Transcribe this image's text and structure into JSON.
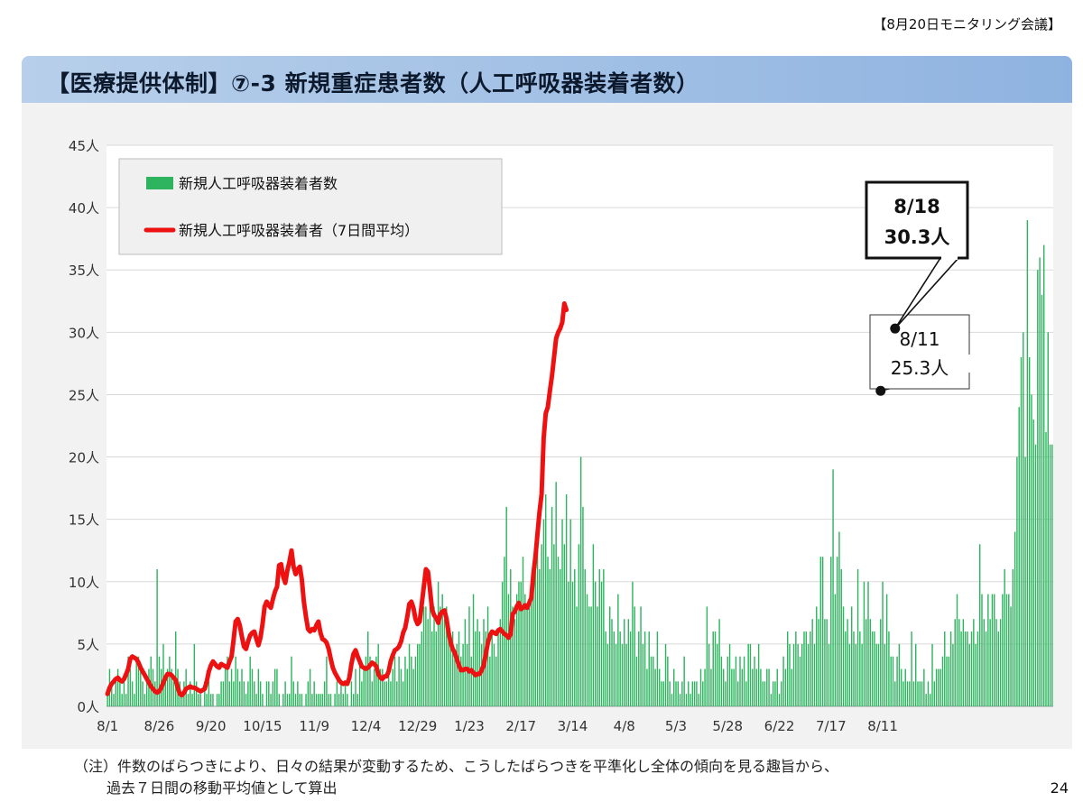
{
  "header": {
    "meeting_tag": "【8月20日モニタリング会議】"
  },
  "title": "【医療提供体制】⑦-3 新規重症患者数（人工呼吸器装着者数）",
  "note": {
    "line1": "（注）件数のばらつきにより、日々の結果が変動するため、こうしたばらつきを平準化し全体の傾向を見る趣旨から、",
    "line2": "過去７日間の移動平均値として算出"
  },
  "page_number": "24",
  "colors": {
    "bar": "#2eb35f",
    "line": "#ee1111",
    "title_bar": "#9dbde5",
    "plot_bg": "#ffffff",
    "panel_bg": "#f2f2f2"
  },
  "chart_data": {
    "type": "bar",
    "ylim": [
      0,
      45
    ],
    "y_ticks": [
      "0人",
      "5人",
      "10人",
      "15人",
      "20人",
      "25人",
      "30人",
      "35人",
      "40人",
      "45人"
    ],
    "x_tick_labels": [
      "8/1",
      "8/26",
      "9/20",
      "10/15",
      "11/9",
      "12/4",
      "12/29",
      "1/23",
      "2/17",
      "3/14",
      "4/8",
      "5/3",
      "5/28",
      "6/22",
      "7/17",
      "8/11"
    ],
    "x_tick_spacing_days": 25,
    "legend": {
      "bars": "新規人工呼吸器装着者数",
      "line": "新規人工呼吸器装着者（7日間平均）",
      "position": "top-left"
    },
    "grid": true,
    "series": [
      {
        "name": "新規人工呼吸器装着者数",
        "type": "bar",
        "values": [
          1,
          3,
          2,
          1,
          2,
          3,
          2,
          1,
          2,
          1,
          4,
          3,
          2,
          1,
          4,
          4,
          3,
          2,
          1,
          2,
          3,
          4,
          3,
          2,
          11,
          4,
          3,
          5,
          2,
          3,
          4,
          3,
          2,
          6,
          3,
          2,
          1,
          2,
          3,
          1,
          2,
          1,
          5,
          2,
          1,
          1,
          0,
          2,
          1,
          2,
          1,
          1,
          0,
          1,
          1,
          2,
          2,
          3,
          4,
          2,
          3,
          2,
          4,
          3,
          2,
          3,
          2,
          1,
          2,
          4,
          3,
          2,
          1,
          3,
          2,
          1,
          0,
          2,
          2,
          1,
          2,
          3,
          3,
          1,
          0,
          1,
          2,
          1,
          1,
          4,
          2,
          1,
          2,
          1,
          1,
          0,
          1,
          2,
          3,
          1,
          2,
          1,
          1,
          1,
          1,
          2,
          4,
          1,
          1,
          0,
          1,
          2,
          1,
          2,
          1,
          2,
          1,
          0,
          2,
          1,
          3,
          1,
          4,
          2,
          3,
          4,
          6,
          4,
          2,
          3,
          4,
          5,
          3,
          3,
          2,
          2,
          3,
          2,
          3,
          4,
          2,
          4,
          3,
          2,
          4,
          3,
          5,
          4,
          3,
          4,
          5,
          5,
          6,
          8,
          8,
          7,
          9,
          6,
          8,
          6,
          10,
          8,
          9,
          7,
          8,
          6,
          5,
          6,
          4,
          5,
          6,
          4,
          5,
          7,
          5,
          8,
          4,
          9,
          6,
          7,
          6,
          5,
          7,
          6,
          8,
          4,
          6,
          5,
          4,
          6,
          7,
          10,
          12,
          16,
          9,
          11,
          8,
          7,
          9,
          10,
          10,
          12,
          9,
          8,
          8,
          10,
          11,
          12,
          14,
          11,
          13,
          15,
          17,
          12,
          11,
          16,
          13,
          18,
          12,
          11,
          15,
          13,
          17,
          10,
          15,
          10,
          11,
          8,
          13,
          20,
          16,
          11,
          9,
          8,
          8,
          13,
          10,
          8,
          11,
          10,
          11,
          6,
          5,
          8,
          7,
          6,
          5,
          9,
          6,
          5,
          7,
          5,
          7,
          6,
          10,
          8,
          4,
          6,
          8,
          5,
          6,
          3,
          6,
          4,
          4,
          3,
          6,
          3,
          2,
          2,
          5,
          4,
          2,
          1,
          3,
          2,
          2,
          1,
          2,
          4,
          1,
          2,
          1,
          2,
          2,
          2,
          1,
          3,
          2,
          3,
          8,
          5,
          3,
          6,
          6,
          5,
          7,
          4,
          3,
          2,
          4,
          5,
          3,
          3,
          4,
          2,
          4,
          3,
          4,
          2,
          5,
          5,
          3,
          4,
          3,
          5,
          3,
          2,
          2,
          3,
          3,
          1,
          2,
          2,
          3,
          1,
          2,
          4,
          3,
          6,
          5,
          3,
          5,
          6,
          5,
          4,
          5,
          6,
          6,
          5,
          6,
          7,
          5,
          8,
          7,
          12,
          12,
          7,
          7,
          5,
          12,
          19,
          9,
          12,
          14,
          11,
          8,
          6,
          7,
          5,
          8,
          6,
          5,
          11,
          6,
          5,
          10,
          7,
          10,
          7,
          6,
          6,
          5,
          5,
          7,
          10,
          5,
          9,
          6,
          4,
          4,
          2,
          4,
          5,
          3,
          2,
          3,
          2,
          2,
          6,
          2,
          5,
          2,
          2,
          2,
          3,
          1,
          2,
          1,
          5,
          2,
          3,
          3,
          3,
          4,
          6,
          4,
          4,
          6,
          5,
          7,
          9,
          7,
          6,
          7,
          6,
          6,
          5,
          6,
          7,
          5,
          6,
          13,
          9,
          7,
          6,
          9,
          7,
          9,
          9,
          7,
          6,
          7,
          9,
          11,
          9,
          9,
          8,
          11,
          14,
          20,
          24,
          28,
          30,
          20,
          39,
          28,
          25,
          23,
          21,
          35,
          36,
          33,
          37,
          22,
          30,
          21,
          21
        ],
        "color": "#2eb35f"
      },
      {
        "name": "新規人工呼吸器装着者（7日間平均）",
        "type": "line",
        "x_start": 0,
        "values": [
          1.0,
          1.5,
          1.8,
          2.0,
          2.2,
          2.3,
          2.1,
          2.0,
          2.2,
          2.6,
          3.0,
          3.8,
          4.0,
          3.9,
          3.8,
          3.5,
          3.1,
          2.8,
          2.5,
          2.2,
          1.9,
          1.6,
          1.4,
          1.2,
          1.1,
          1.2,
          1.5,
          1.9,
          2.3,
          2.6,
          2.6,
          2.5,
          2.3,
          2.1,
          1.5,
          1.0,
          0.9,
          1.1,
          1.4,
          1.5,
          1.6,
          1.5,
          1.5,
          1.4,
          1.3,
          1.2,
          1.3,
          1.4,
          2.0,
          2.8,
          3.3,
          3.6,
          3.4,
          3.2,
          3.1,
          3.4,
          3.3,
          3.2,
          3.1,
          3.6,
          4.0,
          5.4,
          6.8,
          7.0,
          6.5,
          5.6,
          4.8,
          4.6,
          5.2,
          5.7,
          5.9,
          6.0,
          5.4,
          4.9,
          5.5,
          6.6,
          8.0,
          8.4,
          8.1,
          7.9,
          8.6,
          9.2,
          9.6,
          11.3,
          11.4,
          10.4,
          9.9,
          10.9,
          11.6,
          12.5,
          11.2,
          10.6,
          11.0,
          11.2,
          10.2,
          8.4,
          7.2,
          6.2,
          6.0,
          6.2,
          6.1,
          6.5,
          6.8,
          5.9,
          5.4,
          5.3,
          5.1,
          4.6,
          3.8,
          3.1,
          2.7,
          2.4,
          2.1,
          1.9,
          1.8,
          1.9,
          1.8,
          2.3,
          3.4,
          4.2,
          4.5,
          4.0,
          3.6,
          3.2,
          3.1,
          3.0,
          3.1,
          3.3,
          3.5,
          3.4,
          3.2,
          2.6,
          2.3,
          2.2,
          2.4,
          2.4,
          2.8,
          3.6,
          4.1,
          4.5,
          4.6,
          4.8,
          5.2,
          5.9,
          6.3,
          7.2,
          8.2,
          8.4,
          7.9,
          7.0,
          6.6,
          6.8,
          8.2,
          9.6,
          11.0,
          10.8,
          9.4,
          7.8,
          7.3,
          7.1,
          6.7,
          7.4,
          7.6,
          7.7,
          7.0,
          5.9,
          5.1,
          4.6,
          4.3,
          3.8,
          3.3,
          2.9,
          2.9,
          3.0,
          3.0,
          2.8,
          2.9,
          2.7,
          2.5,
          2.6,
          2.6,
          2.9,
          3.3,
          4.2,
          5.1,
          5.7,
          6.0,
          5.9,
          5.8,
          6.1,
          6.2,
          6.0,
          5.8,
          5.7,
          5.5,
          5.8,
          7.4,
          7.6,
          8.0,
          8.3,
          7.8,
          7.9,
          8.1,
          7.9,
          8.3,
          8.7,
          10.6,
          12.0,
          13.8,
          15.6,
          17.0,
          21.5,
          23.5,
          24.0,
          25.3,
          26.5,
          28.0,
          29.5,
          30.0,
          30.3,
          30.8,
          32.3,
          31.8
        ],
        "color": "#ee1111"
      }
    ],
    "annotations": [
      {
        "label_date": "8/11",
        "label_value": "25.3人",
        "point": {
          "x": 374,
          "y": 25.3
        }
      },
      {
        "label_date": "8/18",
        "label_value": "30.3人",
        "point": {
          "x": 381,
          "y": 30.3
        }
      }
    ]
  }
}
